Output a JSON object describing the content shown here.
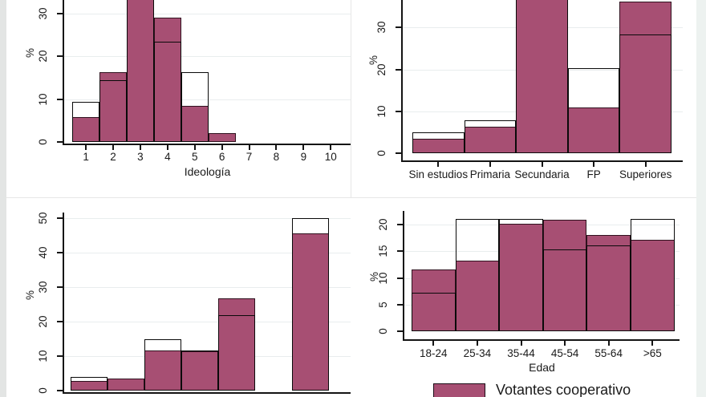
{
  "figure": {
    "background": "#ffffff",
    "bar_fill": "#a74f73",
    "bar_fill_border": "#30121f",
    "outline_stroke": "#0a0a0a",
    "grid_color": "#e9edee",
    "axis_color": "#141414",
    "text_color": "#1a1a1a",
    "boundary_color": "#e7e7e7",
    "left_strip_color": "#e3e5e4",
    "right_strip_color": "#edf2f0"
  },
  "legend": {
    "label": "Votantes cooperativo",
    "swatch_color": "#a74f73",
    "swatch_border": "#1c0d17"
  },
  "chart_data": [
    {
      "id": "ideologia",
      "type": "bar",
      "xlabel": "Ideología",
      "ylabel": "%",
      "note": "top of plot cropped by screenshot edge",
      "categories": [
        "1",
        "2",
        "3",
        "4",
        "5",
        "6",
        "7",
        "8",
        "9",
        "10"
      ],
      "yticks": [
        0,
        10,
        20,
        30
      ],
      "ylim": [
        0,
        35
      ],
      "series": [
        {
          "name": "Votantes cooperativo",
          "style": "filled",
          "values": [
            5.9,
            16.4,
            36,
            29.1,
            8.4,
            2.0,
            0,
            0,
            0,
            0
          ]
        },
        {
          "name": "",
          "style": "outline",
          "values": [
            9.4,
            14.4,
            34.5,
            23.5,
            16.3,
            0,
            0,
            0,
            0,
            0
          ]
        }
      ]
    },
    {
      "id": "estudios",
      "type": "bar",
      "xlabel": "",
      "ylabel": "%",
      "note": "top of plot cropped by screenshot edge",
      "categories": [
        "Sin estudios",
        "Primaria",
        "Secundaria",
        "FP",
        "Superiores"
      ],
      "yticks": [
        0,
        10,
        20,
        30
      ],
      "ylim": [
        0,
        37
      ],
      "series": [
        {
          "name": "Votantes cooperativo",
          "style": "filled",
          "values": [
            3.4,
            6.3,
            45,
            10.9,
            36.3
          ]
        },
        {
          "name": "",
          "style": "outline",
          "values": [
            4.9,
            7.8,
            43,
            20.3,
            28.4
          ]
        }
      ]
    },
    {
      "id": "escala",
      "type": "bar",
      "xlabel": "",
      "ylabel": "%",
      "note": "x-axis tick labels cropped below screenshot edge; sixth slot empty",
      "categories": [
        "",
        "",
        "",
        "",
        "",
        "",
        ""
      ],
      "yticks": [
        0,
        10,
        20,
        30,
        40,
        50
      ],
      "ylim": [
        0,
        52
      ],
      "series": [
        {
          "name": "Votantes cooperativo",
          "style": "filled",
          "values": [
            2.9,
            3.6,
            11.6,
            11.4,
            26.7,
            0,
            45.5
          ]
        },
        {
          "name": "",
          "style": "outline",
          "values": [
            4.0,
            0,
            14.8,
            11.7,
            21.8,
            0,
            50
          ]
        }
      ]
    },
    {
      "id": "edad",
      "type": "bar",
      "xlabel": "Edad",
      "ylabel": "%",
      "categories": [
        "18-24",
        "25-34",
        "35-44",
        "45-54",
        "55-64",
        ">65"
      ],
      "yticks": [
        0,
        5,
        10,
        15,
        20
      ],
      "ylim": [
        0,
        22.5
      ],
      "series": [
        {
          "name": "Votantes cooperativo",
          "style": "filled",
          "values": [
            11.6,
            13.3,
            20.2,
            20.9,
            18.0,
            17.1
          ]
        },
        {
          "name": "",
          "style": "outline",
          "values": [
            7.2,
            21.0,
            21.0,
            15.3,
            16.1,
            21.0
          ]
        }
      ]
    }
  ]
}
